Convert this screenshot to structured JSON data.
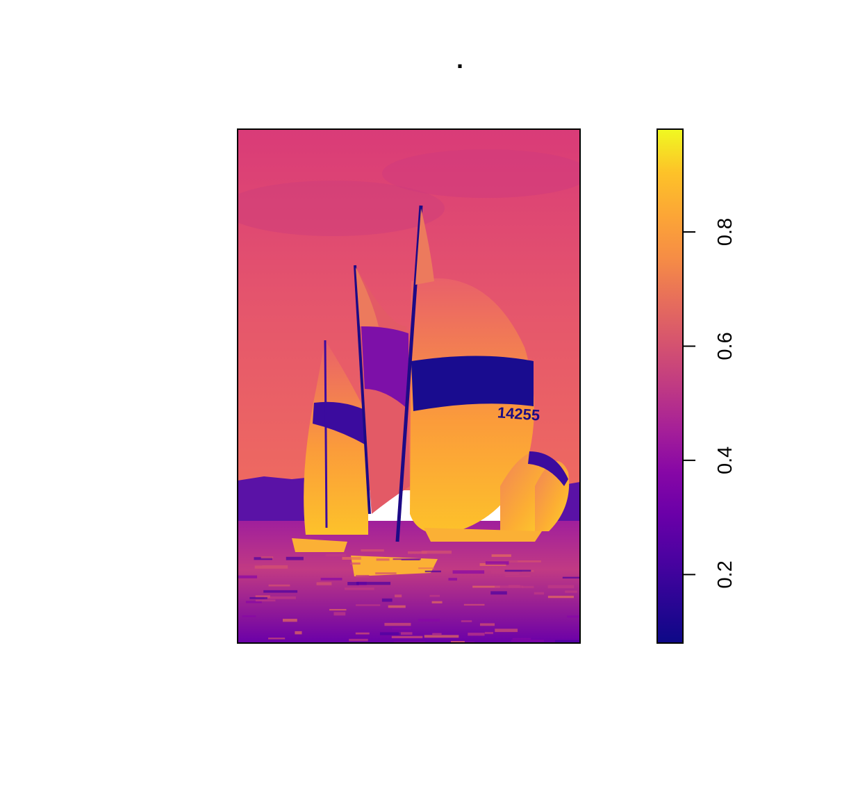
{
  "chart_data": {
    "type": "heatmap",
    "title": ".",
    "xlabel": "",
    "ylabel": "",
    "colorbar": {
      "range": [
        0.08,
        0.98
      ],
      "ticks": [
        0.2,
        0.4,
        0.6,
        0.8
      ],
      "tick_labels": [
        "0.2",
        "0.4",
        "0.6",
        "0.8"
      ],
      "palette": [
        "#0d0887",
        "#2b0594",
        "#4c02a1",
        "#6a00a8",
        "#8707a6",
        "#a62098",
        "#c03a83",
        "#d5536f",
        "#e76e5b",
        "#f68d45",
        "#fca636",
        "#fdc328",
        "#f0f921"
      ]
    },
    "image": {
      "description_semantic": "sailboat-regatta-spinnakers",
      "sail_number": "14255",
      "sky_value": 0.58,
      "water_value": 0.45,
      "shoreline_value": 0.35,
      "dark_band_value": 0.15,
      "bright_sail_value": 0.85
    }
  }
}
